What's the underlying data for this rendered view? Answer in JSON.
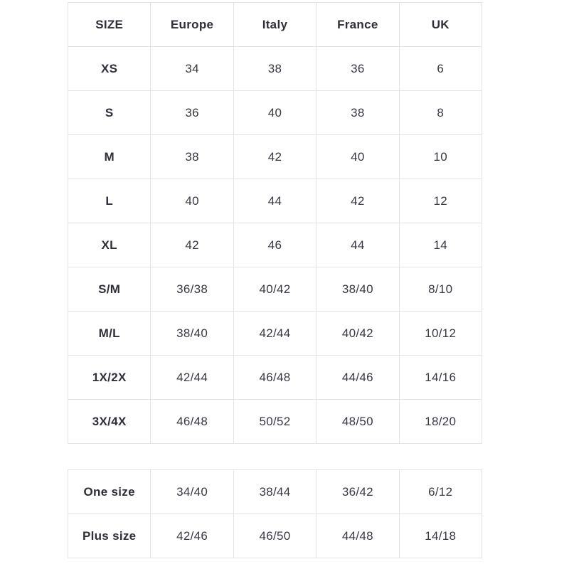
{
  "colors": {
    "background": "#ffffff",
    "border": "#e3e3e3",
    "header_text": "#2e2f38",
    "cell_text": "#383943"
  },
  "main_table": {
    "headers": [
      "SIZE",
      "Europe",
      "Italy",
      "France",
      "UK"
    ],
    "rows": [
      {
        "label": "XS",
        "values": [
          "34",
          "38",
          "36",
          "6"
        ]
      },
      {
        "label": "S",
        "values": [
          "36",
          "40",
          "38",
          "8"
        ]
      },
      {
        "label": "M",
        "values": [
          "38",
          "42",
          "40",
          "10"
        ]
      },
      {
        "label": "L",
        "values": [
          "40",
          "44",
          "42",
          "12"
        ]
      },
      {
        "label": "XL",
        "values": [
          "42",
          "46",
          "44",
          "14"
        ]
      },
      {
        "label": "S/M",
        "values": [
          "36/38",
          "40/42",
          "38/40",
          "8/10"
        ]
      },
      {
        "label": "M/L",
        "values": [
          "38/40",
          "42/44",
          "40/42",
          "10/12"
        ]
      },
      {
        "label": "1X/2X",
        "values": [
          "42/44",
          "46/48",
          "44/46",
          "14/16"
        ]
      },
      {
        "label": "3X/4X",
        "values": [
          "46/48",
          "50/52",
          "48/50",
          "18/20"
        ]
      }
    ]
  },
  "secondary_table": {
    "rows": [
      {
        "label": "One size",
        "values": [
          "34/40",
          "38/44",
          "36/42",
          "6/12"
        ]
      },
      {
        "label": "Plus size",
        "values": [
          "42/46",
          "46/50",
          "44/48",
          "14/18"
        ]
      }
    ]
  }
}
